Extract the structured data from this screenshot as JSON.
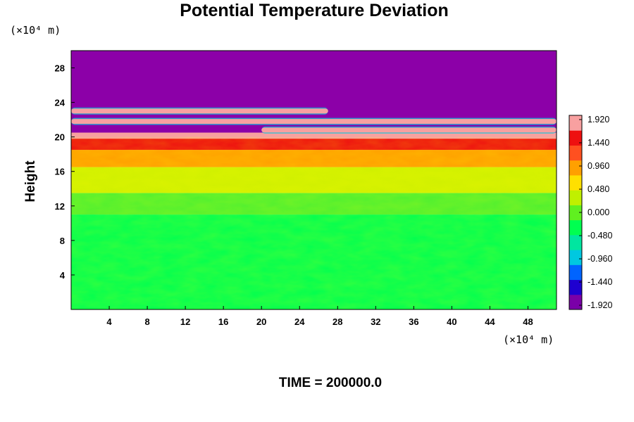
{
  "chart_data": {
    "type": "heatmap",
    "title": "Potential Temperature Deviation",
    "ylabel": "Height",
    "x_unit_label": "(×10⁴ m)",
    "y_unit_label": "(×10⁴ m)",
    "footer": "TIME = 200000.0",
    "xlim": [
      0,
      51
    ],
    "ylim": [
      0,
      30
    ],
    "x_ticks": [
      "4",
      "8",
      "12",
      "16",
      "20",
      "24",
      "28",
      "32",
      "36",
      "40",
      "44",
      "48"
    ],
    "y_ticks": [
      "4",
      "8",
      "12",
      "16",
      "20",
      "24",
      "28"
    ],
    "colorbar": {
      "min": -1.92,
      "max": 1.92,
      "labels": [
        "1.920",
        "1.440",
        "0.960",
        "0.480",
        "0.000",
        "-0.480",
        "-0.960",
        "-1.440",
        "-1.920"
      ],
      "colors": [
        "#7a00a8",
        "#1e00d0",
        "#0064ff",
        "#00c8e0",
        "#00e6a0",
        "#00ff50",
        "#60f020",
        "#c0f000",
        "#ffe000",
        "#ffa000",
        "#ff5020",
        "#ee1010",
        "#f8a0a0"
      ]
    },
    "layers": [
      {
        "height_range": [
          0,
          11
        ],
        "value": -0.05,
        "description_color": "#00ff50"
      },
      {
        "height_range": [
          11,
          13.5
        ],
        "value": 0.15,
        "description_color": "#50f030"
      },
      {
        "height_range": [
          13.5,
          16.5
        ],
        "value": 0.6,
        "description_color": "#d0f000"
      },
      {
        "height_range": [
          16.5,
          18.5
        ],
        "value": 1.1,
        "description_color": "#ffa000"
      },
      {
        "height_range": [
          18.5,
          19.8
        ],
        "value": 1.6,
        "description_color": "#ee1010"
      },
      {
        "height_range": [
          19.8,
          20.5
        ],
        "value": 1.92,
        "description_color": "#f8a0a0"
      },
      {
        "height_range": [
          20.5,
          30
        ],
        "value": -1.92,
        "description_color": "#8c00a8"
      }
    ],
    "bands": [
      {
        "x_range": [
          0,
          27
        ],
        "y_center": 23,
        "value": 1.92
      },
      {
        "x_range": [
          0,
          51
        ],
        "y_center": 21.8,
        "value": 1.92
      },
      {
        "x_range": [
          20,
          51
        ],
        "y_center": 20.8,
        "value": 1.92
      }
    ]
  }
}
